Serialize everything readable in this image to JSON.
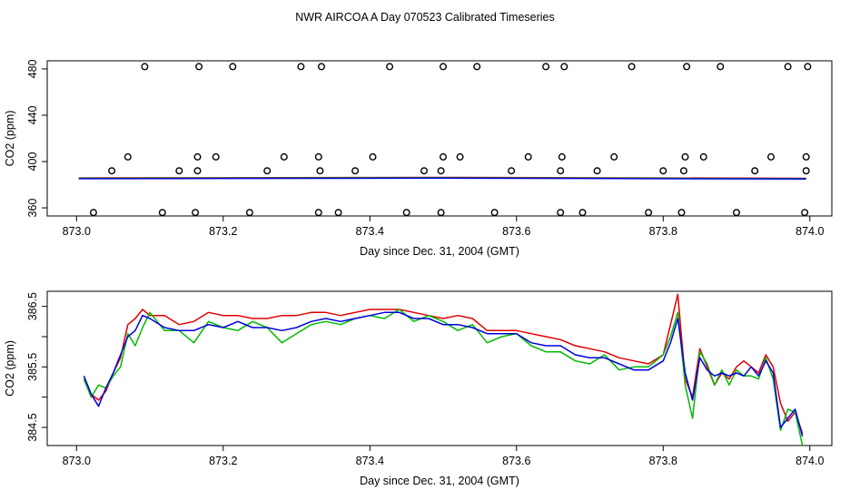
{
  "title": "NWR AIRCOA A  Day 070523  Calibrated Timeseries",
  "colors": {
    "red": "#e00000",
    "green": "#00bb00",
    "blue": "#0000dd",
    "axis": "#000000"
  },
  "chart_data": [
    {
      "type": "scatter+line",
      "name": "top-panel",
      "xlabel": "Day since Dec. 31, 2004 (GMT)",
      "ylabel": "CO2 (ppm)",
      "xlim": [
        872.96,
        874.03
      ],
      "ylim": [
        353,
        487
      ],
      "xticks": [
        873.0,
        873.2,
        873.4,
        873.6,
        873.8,
        874.0
      ],
      "xtick_labels": [
        "873.0",
        "873.2",
        "873.4",
        "873.6",
        "873.8",
        "874.0"
      ],
      "yticks": [
        360,
        400,
        440,
        480
      ],
      "ytick_labels": [
        "360",
        "400",
        "440",
        "480"
      ],
      "points": [
        [
          873.023,
          356
        ],
        [
          873.048,
          392
        ],
        [
          873.07,
          404
        ],
        [
          873.093,
          482
        ],
        [
          873.117,
          356
        ],
        [
          873.14,
          392
        ],
        [
          873.162,
          356
        ],
        [
          873.165,
          392
        ],
        [
          873.165,
          404
        ],
        [
          873.167,
          482
        ],
        [
          873.19,
          404
        ],
        [
          873.213,
          482
        ],
        [
          873.236,
          356
        ],
        [
          873.26,
          392
        ],
        [
          873.283,
          404
        ],
        [
          873.306,
          482
        ],
        [
          873.33,
          356
        ],
        [
          873.33,
          404
        ],
        [
          873.332,
          392
        ],
        [
          873.334,
          482
        ],
        [
          873.357,
          356
        ],
        [
          873.38,
          392
        ],
        [
          873.404,
          404
        ],
        [
          873.427,
          482
        ],
        [
          873.45,
          356
        ],
        [
          873.474,
          392
        ],
        [
          873.497,
          356
        ],
        [
          873.497,
          392
        ],
        [
          873.5,
          404
        ],
        [
          873.5,
          482
        ],
        [
          873.523,
          404
        ],
        [
          873.546,
          482
        ],
        [
          873.57,
          356
        ],
        [
          873.593,
          392
        ],
        [
          873.616,
          404
        ],
        [
          873.64,
          482
        ],
        [
          873.66,
          356
        ],
        [
          873.66,
          392
        ],
        [
          873.662,
          404
        ],
        [
          873.665,
          482
        ],
        [
          873.69,
          356
        ],
        [
          873.71,
          392
        ],
        [
          873.733,
          404
        ],
        [
          873.757,
          482
        ],
        [
          873.78,
          356
        ],
        [
          873.8,
          392
        ],
        [
          873.825,
          356
        ],
        [
          873.828,
          392
        ],
        [
          873.83,
          404
        ],
        [
          873.832,
          482
        ],
        [
          873.855,
          404
        ],
        [
          873.878,
          482
        ],
        [
          873.9,
          356
        ],
        [
          873.925,
          392
        ],
        [
          873.947,
          404
        ],
        [
          873.97,
          482
        ],
        [
          873.993,
          356
        ],
        [
          873.995,
          392
        ],
        [
          873.995,
          404
        ],
        [
          873.997,
          482
        ]
      ],
      "line_x": [
        873.003,
        873.5,
        873.995
      ],
      "line_y": [
        385.5,
        386.0,
        385.2
      ],
      "series_colors": [
        "#e00000",
        "#00bb00",
        "#0000dd"
      ]
    },
    {
      "type": "line",
      "name": "bottom-panel",
      "xlabel": "Day since Dec. 31, 2004 (GMT)",
      "ylabel": "CO2 (ppm)",
      "xlim": [
        872.96,
        874.03
      ],
      "ylim": [
        384.2,
        386.75
      ],
      "xticks": [
        873.0,
        873.2,
        873.4,
        873.6,
        873.8,
        874.0
      ],
      "xtick_labels": [
        "873.0",
        "873.2",
        "873.4",
        "873.6",
        "873.8",
        "874.0"
      ],
      "yticks": [
        384.5,
        385.5,
        386.5
      ],
      "ytick_labels": [
        "384.5",
        "385.5",
        "386.5"
      ],
      "minor_yticks": [
        385.0,
        386.0
      ],
      "x": [
        873.01,
        873.02,
        873.03,
        873.04,
        873.05,
        873.06,
        873.07,
        873.08,
        873.09,
        873.1,
        873.12,
        873.14,
        873.16,
        873.18,
        873.2,
        873.22,
        873.24,
        873.26,
        873.28,
        873.3,
        873.32,
        873.34,
        873.36,
        873.38,
        873.4,
        873.42,
        873.44,
        873.46,
        873.48,
        873.5,
        873.52,
        873.54,
        873.56,
        873.58,
        873.6,
        873.62,
        873.64,
        873.66,
        873.68,
        873.7,
        873.72,
        873.74,
        873.76,
        873.78,
        873.8,
        873.81,
        873.82,
        873.83,
        873.84,
        873.85,
        873.86,
        873.87,
        873.88,
        873.89,
        873.9,
        873.91,
        873.92,
        873.93,
        873.94,
        873.95,
        873.96,
        873.97,
        873.98,
        873.99
      ],
      "series": [
        {
          "name": "red",
          "color": "#e00000",
          "values": [
            385.3,
            385.05,
            384.95,
            385.1,
            385.4,
            385.65,
            386.2,
            386.3,
            386.45,
            386.35,
            386.35,
            386.2,
            386.25,
            386.4,
            386.35,
            386.35,
            386.3,
            386.3,
            386.35,
            386.35,
            386.4,
            386.4,
            386.35,
            386.4,
            386.45,
            386.45,
            386.45,
            386.4,
            386.35,
            386.3,
            386.35,
            386.3,
            386.1,
            386.1,
            386.1,
            386.05,
            386.0,
            385.95,
            385.85,
            385.8,
            385.75,
            385.65,
            385.6,
            385.55,
            385.7,
            386.2,
            386.7,
            385.3,
            385.0,
            385.8,
            385.5,
            385.2,
            385.4,
            385.3,
            385.5,
            385.6,
            385.5,
            385.4,
            385.7,
            385.5,
            384.9,
            384.6,
            384.75,
            384.4
          ]
        },
        {
          "name": "green",
          "color": "#00bb00",
          "values": [
            385.3,
            385.0,
            385.2,
            385.15,
            385.35,
            385.5,
            386.05,
            385.85,
            386.15,
            386.4,
            386.1,
            386.1,
            385.9,
            386.25,
            386.15,
            386.1,
            386.25,
            386.15,
            385.9,
            386.05,
            386.2,
            386.25,
            386.2,
            386.3,
            386.35,
            386.3,
            386.45,
            386.25,
            386.35,
            386.25,
            386.1,
            386.2,
            385.9,
            386.0,
            386.05,
            385.85,
            385.75,
            385.75,
            385.6,
            385.55,
            385.7,
            385.45,
            385.5,
            385.5,
            385.7,
            386.0,
            386.4,
            385.2,
            384.65,
            385.75,
            385.55,
            385.2,
            385.45,
            385.2,
            385.45,
            385.35,
            385.35,
            385.3,
            385.65,
            385.3,
            384.45,
            384.8,
            384.75,
            384.2
          ]
        },
        {
          "name": "blue",
          "color": "#0000dd",
          "values": [
            385.35,
            385.05,
            384.85,
            385.15,
            385.4,
            385.7,
            386.0,
            386.1,
            386.35,
            386.3,
            386.15,
            386.1,
            386.1,
            386.2,
            386.15,
            386.25,
            386.15,
            386.15,
            386.1,
            386.15,
            386.25,
            386.3,
            386.25,
            386.3,
            386.35,
            386.4,
            386.4,
            386.3,
            386.3,
            386.2,
            386.2,
            386.15,
            386.05,
            386.05,
            386.05,
            385.9,
            385.85,
            385.85,
            385.7,
            385.65,
            385.65,
            385.55,
            385.45,
            385.45,
            385.6,
            385.9,
            386.3,
            385.4,
            384.95,
            385.65,
            385.45,
            385.35,
            385.4,
            385.35,
            385.4,
            385.35,
            385.5,
            385.35,
            385.6,
            385.4,
            384.5,
            384.65,
            384.8,
            384.35
          ]
        }
      ]
    }
  ]
}
